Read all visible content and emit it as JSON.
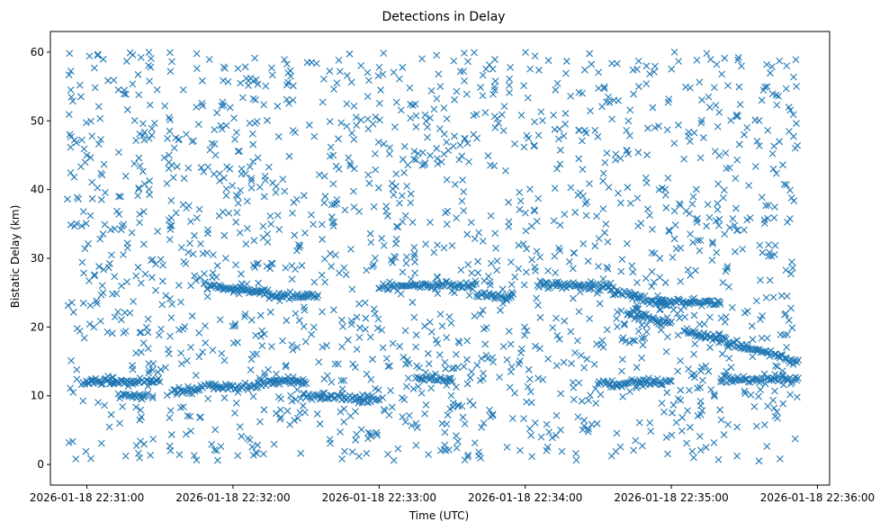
{
  "chart_data": {
    "type": "scatter",
    "title": "Detections in Delay",
    "xlabel": "Time (UTC)",
    "ylabel": "Bistatic Delay (km)",
    "x_axis": {
      "type": "time",
      "range": [
        "2026-01-18 22:30:45",
        "2026-01-18 22:36:05"
      ],
      "ticks": [
        "2026-01-18 22:31:00",
        "2026-01-18 22:32:00",
        "2026-01-18 22:33:00",
        "2026-01-18 22:34:00",
        "2026-01-18 22:35:00",
        "2026-01-18 22:36:00"
      ],
      "tick_labels": [
        "2026-01-18 22:31:00",
        "2026-01-18 22:32:00",
        "2026-01-18 22:33:00",
        "2026-01-18 22:34:00",
        "2026-01-18 22:35:00",
        "2026-01-18 22:36:00"
      ]
    },
    "y_axis": {
      "range": [
        -3,
        63
      ],
      "ticks": [
        0,
        10,
        20,
        30,
        40,
        50,
        60
      ],
      "tick_labels": [
        "0",
        "10",
        "20",
        "30",
        "40",
        "50",
        "60"
      ]
    },
    "grid": false,
    "legend": "none",
    "marker": "x",
    "color": "#1f77b4",
    "series_time_range": [
      "2026-01-18 22:30:52",
      "2026-01-18 22:35:52"
    ],
    "clutter_delay_range": [
      0.5,
      60
    ],
    "tracks": [
      {
        "x": [
          "2026-01-18 22:30:58",
          "2026-01-18 22:31:30"
        ],
        "y": [
          12.1,
          12.0
        ]
      },
      {
        "x": [
          "2026-01-18 22:31:13",
          "2026-01-18 22:31:25"
        ],
        "y": [
          10.0,
          10.0
        ]
      },
      {
        "x": [
          "2026-01-18 22:31:35",
          "2026-01-18 22:31:48"
        ],
        "y": [
          10.5,
          11.0
        ]
      },
      {
        "x": [
          "2026-01-18 22:31:50",
          "2026-01-18 22:32:10"
        ],
        "y": [
          11.4,
          11.3
        ]
      },
      {
        "x": [
          "2026-01-18 22:32:10",
          "2026-01-18 22:32:30"
        ],
        "y": [
          11.8,
          12.0
        ]
      },
      {
        "x": [
          "2026-01-18 22:32:30",
          "2026-01-18 22:32:45"
        ],
        "y": [
          10.0,
          9.8
        ]
      },
      {
        "x": [
          "2026-01-18 22:32:45",
          "2026-01-18 22:33:00"
        ],
        "y": [
          9.6,
          9.5
        ]
      },
      {
        "x": [
          "2026-01-18 22:33:15",
          "2026-01-18 22:33:30"
        ],
        "y": [
          12.4,
          12.4
        ]
      },
      {
        "x": [
          "2026-01-18 22:34:30",
          "2026-01-18 22:35:00"
        ],
        "y": [
          11.8,
          12.0
        ]
      },
      {
        "x": [
          "2026-01-18 22:35:20",
          "2026-01-18 22:35:52"
        ],
        "y": [
          12.4,
          12.4
        ]
      },
      {
        "x": [
          "2026-01-18 22:31:48",
          "2026-01-18 22:32:15"
        ],
        "y": [
          26.0,
          24.8
        ]
      },
      {
        "x": [
          "2026-01-18 22:32:15",
          "2026-01-18 22:32:35"
        ],
        "y": [
          24.6,
          24.5
        ]
      },
      {
        "x": [
          "2026-01-18 22:33:00",
          "2026-01-18 22:33:20"
        ],
        "y": [
          25.8,
          26.0
        ]
      },
      {
        "x": [
          "2026-01-18 22:33:20",
          "2026-01-18 22:33:40"
        ],
        "y": [
          26.2,
          26.0
        ]
      },
      {
        "x": [
          "2026-01-18 22:33:40",
          "2026-01-18 22:33:55"
        ],
        "y": [
          24.6,
          24.4
        ]
      },
      {
        "x": [
          "2026-01-18 22:34:05",
          "2026-01-18 22:34:35"
        ],
        "y": [
          26.2,
          25.8
        ]
      },
      {
        "x": [
          "2026-01-18 22:34:35",
          "2026-01-18 22:34:58"
        ],
        "y": [
          25.3,
          23.3
        ]
      },
      {
        "x": [
          "2026-01-18 22:34:42",
          "2026-01-18 22:35:00"
        ],
        "y": [
          22.0,
          20.5
        ]
      },
      {
        "x": [
          "2026-01-18 22:34:55",
          "2026-01-18 22:35:20"
        ],
        "y": [
          23.6,
          23.6
        ]
      },
      {
        "x": [
          "2026-01-18 22:35:05",
          "2026-01-18 22:35:52"
        ],
        "y": [
          19.5,
          15.0
        ]
      }
    ]
  }
}
